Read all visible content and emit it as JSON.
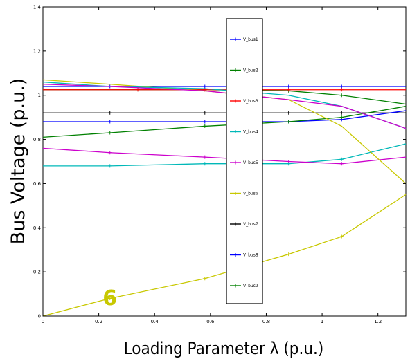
{
  "chart_data": {
    "type": "line",
    "xlabel": "Loading Parameter λ (p.u.)",
    "ylabel": "Bus Voltage (p.u.)",
    "xlim": [
      0,
      1.3
    ],
    "ylim": [
      0,
      1.4
    ],
    "xticks": [
      "0",
      "0.2",
      "0.4",
      "0.6",
      "0.8",
      "1",
      "1.2"
    ],
    "yticks": [
      "0",
      "0.2",
      "0.4",
      "0.6",
      "0.8",
      "1",
      "1.2",
      "1.4"
    ],
    "grid": false,
    "legend_position": "center",
    "series": [
      {
        "name": "V_bus1",
        "color": "#0000ff",
        "x": [
          0,
          0.24,
          0.58,
          0.88,
          1.07,
          1.3
        ],
        "y": [
          1.04,
          1.04,
          1.04,
          1.04,
          1.04,
          1.04
        ]
      },
      {
        "name": "V_bus2",
        "color": "#008000",
        "x": [
          0,
          0.34,
          0.58,
          0.88,
          1.07,
          1.3
        ],
        "y": [
          1.025,
          1.025,
          1.025,
          1.02,
          1.0,
          0.96
        ]
      },
      {
        "name": "V_bus3",
        "color": "#ff0000",
        "x": [
          0,
          0.34,
          0.58,
          0.88,
          1.07,
          1.3
        ],
        "y": [
          1.025,
          1.025,
          1.025,
          1.025,
          1.025,
          1.025
        ]
      },
      {
        "name": "V_bus4",
        "color": "#00b8b8",
        "x": [
          0,
          0.24,
          0.58,
          0.88,
          1.07,
          1.3
        ],
        "y": [
          0.68,
          0.68,
          0.69,
          0.69,
          0.71,
          0.78
        ]
      },
      {
        "name": "V_bus5",
        "color": "#cc00cc",
        "x": [
          0,
          0.24,
          0.58,
          0.88,
          1.07,
          1.3
        ],
        "y": [
          0.76,
          0.74,
          0.72,
          0.7,
          0.69,
          0.72
        ]
      },
      {
        "name": "V_bus6",
        "color": "#c8c800",
        "x": [
          0,
          0.24,
          0.58,
          0.88,
          1.07,
          1.3
        ],
        "y": [
          0,
          0.08,
          0.17,
          0.28,
          0.36,
          0.55
        ]
      },
      {
        "name": "V_bus7",
        "color": "#000000",
        "x": [
          0,
          0.24,
          0.58,
          0.88,
          1.07,
          1.3
        ],
        "y": [
          0.92,
          0.92,
          0.92,
          0.92,
          0.92,
          0.92
        ]
      },
      {
        "name": "V_bus8",
        "color": "#0000ff",
        "x": [
          0,
          0.24,
          0.58,
          0.88,
          1.07,
          1.3
        ],
        "y": [
          0.88,
          0.88,
          0.88,
          0.88,
          0.89,
          0.93
        ]
      },
      {
        "name": "V_bus9",
        "color": "#008000",
        "x": [
          0,
          0.24,
          0.58,
          0.88,
          1.07,
          1.3
        ],
        "y": [
          0.81,
          0.83,
          0.86,
          0.88,
          0.9,
          0.95
        ]
      },
      {
        "name": "",
        "color": "#c8c800",
        "x": [
          0,
          0.24,
          0.58,
          0.88,
          1.07,
          1.3
        ],
        "y": [
          1.07,
          1.05,
          1.02,
          0.98,
          0.86,
          0.6
        ]
      },
      {
        "name": "",
        "color": "#00b8b8",
        "x": [
          0,
          0.24,
          0.58,
          0.88,
          1.07,
          1.3
        ],
        "y": [
          1.06,
          1.04,
          1.03,
          1.0,
          0.95,
          0.85
        ]
      },
      {
        "name": "",
        "color": "#cc00cc",
        "x": [
          0,
          0.24,
          0.58,
          0.88,
          1.07,
          1.3
        ],
        "y": [
          1.05,
          1.04,
          1.02,
          0.98,
          0.95,
          0.85
        ]
      }
    ],
    "annotations": [
      {
        "text": "6",
        "x": 0.24,
        "y": 0.05,
        "color": "#c8c800"
      },
      {
        "text": "6",
        "x": 0.7,
        "y": 0.55,
        "color": "#c8c800"
      }
    ]
  }
}
